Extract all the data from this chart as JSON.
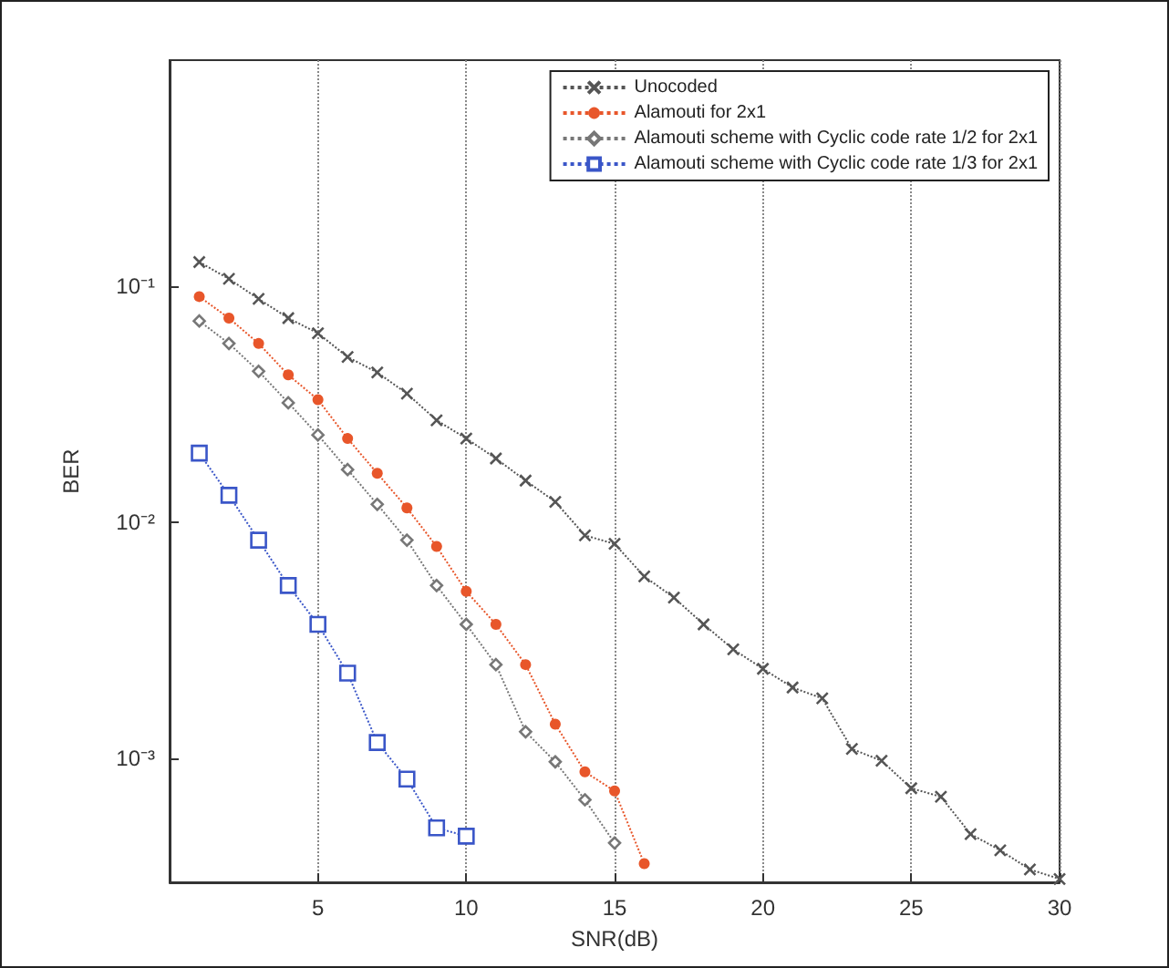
{
  "chart_data": {
    "type": "line",
    "xlabel": "SNR(dB)",
    "ylabel": "BER",
    "xlim": [
      0,
      30
    ],
    "xticks": [
      5,
      10,
      15,
      20,
      25,
      30
    ],
    "ylim": [
      0.0003,
      0.9
    ],
    "yticks": [
      {
        "value": 0.001,
        "label": "10⁻³"
      },
      {
        "value": 0.01,
        "label": "10⁻²"
      },
      {
        "value": 0.1,
        "label": "10⁻¹"
      }
    ],
    "log": "y",
    "grid": "x",
    "legend": "top right",
    "line_style": "dotted",
    "series": [
      {
        "name": "Unocoded",
        "color": "#555555",
        "marker": "cross",
        "x": [
          1,
          2,
          3,
          4,
          5,
          6,
          7,
          8,
          9,
          10,
          11,
          12,
          13,
          14,
          15,
          16,
          17,
          18,
          19,
          20,
          21,
          22,
          23,
          24,
          25,
          26,
          27,
          28,
          29,
          30
        ],
        "values": [
          0.126,
          0.107,
          0.088,
          0.073,
          0.063,
          0.05,
          0.043,
          0.035,
          0.027,
          0.0226,
          0.0186,
          0.015,
          0.0122,
          0.0088,
          0.0081,
          0.0059,
          0.0048,
          0.0037,
          0.0029,
          0.0024,
          0.002,
          0.0018,
          0.0011,
          0.00098,
          0.00075,
          0.00069,
          0.00048,
          0.00041,
          0.00034,
          0.00031
        ]
      },
      {
        "name": "Alamouti for 2x1",
        "color": "#e8562a",
        "marker": "circle",
        "x": [
          1,
          2,
          3,
          4,
          5,
          6,
          7,
          8,
          9,
          10,
          11,
          12,
          13,
          14,
          15,
          16
        ],
        "values": [
          0.09,
          0.073,
          0.057,
          0.042,
          0.033,
          0.0226,
          0.0161,
          0.0115,
          0.0079,
          0.0051,
          0.0037,
          0.0025,
          0.0014,
          0.00088,
          0.00073,
          0.00036
        ]
      },
      {
        "name": "Alamouti scheme with Cyclic code rate 1/2 for 2x1",
        "color": "#777777",
        "marker": "diamond",
        "x": [
          1,
          2,
          3,
          4,
          5,
          6,
          7,
          8,
          9,
          10,
          11,
          12,
          13,
          14,
          15
        ],
        "values": [
          0.071,
          0.057,
          0.0435,
          0.032,
          0.0234,
          0.0167,
          0.0119,
          0.0084,
          0.0054,
          0.0037,
          0.0025,
          0.0013,
          0.00097,
          0.00067,
          0.00044
        ]
      },
      {
        "name": "Alamouti scheme with Cyclic code rate 1/3 for 2x1",
        "color": "#3a56c8",
        "marker": "square",
        "x": [
          1,
          2,
          3,
          4,
          5,
          6,
          7,
          8,
          9,
          10
        ],
        "values": [
          0.0196,
          0.013,
          0.0084,
          0.0054,
          0.0037,
          0.0023,
          0.00117,
          0.00082,
          0.00051,
          0.00047
        ]
      }
    ]
  }
}
